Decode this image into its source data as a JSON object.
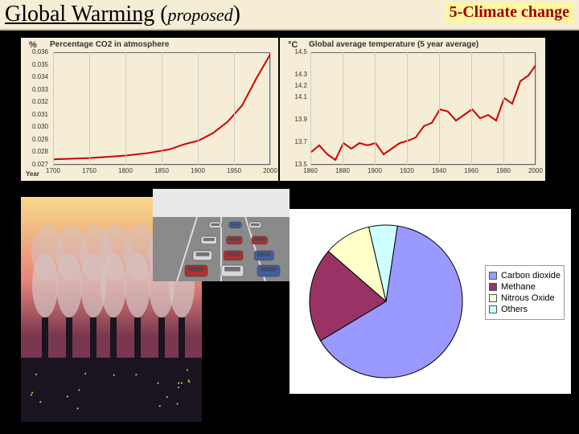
{
  "header": {
    "title_main": "Global Warming",
    "paren_open": "(",
    "paren_text": "proposed",
    "paren_close": ")",
    "tag": "5-Climate change",
    "bg_color": "#f5edd5",
    "tag_bg": "#fcf7a0",
    "tag_color": "#a00000"
  },
  "co2_chart": {
    "type": "line",
    "unit": "%",
    "title": "Percentage CO2 in atmosphere",
    "xaxis_label": "Year",
    "xlim": [
      1700,
      2000
    ],
    "xticks": [
      1700,
      1750,
      1800,
      1850,
      1900,
      1950,
      2000
    ],
    "ylim": [
      0.027,
      0.036
    ],
    "yticks": [
      0.027,
      0.028,
      0.029,
      0.03,
      0.031,
      0.032,
      0.033,
      0.034,
      0.035,
      0.036
    ],
    "ytick_labels": [
      "0.027",
      "0.028",
      "0.029",
      "0.030",
      "0.031",
      "0.032",
      "0.033",
      "0.034",
      "0.035",
      "0.036"
    ],
    "series_x": [
      1700,
      1750,
      1800,
      1830,
      1860,
      1880,
      1900,
      1920,
      1940,
      1960,
      1980,
      2000
    ],
    "series_y": [
      0.0275,
      0.0276,
      0.0278,
      0.028,
      0.0283,
      0.0287,
      0.029,
      0.0296,
      0.0305,
      0.0318,
      0.034,
      0.036
    ],
    "line_color": "#d00000",
    "line_width": 2,
    "grid_color": "#cccccc",
    "bg_color": "#f5edd5",
    "axis_color": "#666666",
    "label_fontsize": 8,
    "title_fontsize": 10
  },
  "temp_chart": {
    "type": "line",
    "unit": "°C",
    "title": "Global average temperature (5 year average)",
    "xlim": [
      1860,
      2000
    ],
    "xticks": [
      1860,
      1880,
      1900,
      1920,
      1940,
      1960,
      1980,
      2000
    ],
    "ylim": [
      13.5,
      14.5
    ],
    "yticks": [
      13.5,
      13.7,
      13.9,
      14.1,
      14.2,
      14.3,
      14.5
    ],
    "ytick_labels": [
      "13.5",
      "13.7",
      "13.9",
      "14.1",
      "14.2",
      "14.3",
      "14.5"
    ],
    "series_x": [
      1860,
      1865,
      1870,
      1875,
      1880,
      1885,
      1890,
      1895,
      1900,
      1905,
      1910,
      1915,
      1920,
      1925,
      1930,
      1935,
      1940,
      1945,
      1950,
      1955,
      1960,
      1965,
      1970,
      1975,
      1980,
      1985,
      1990,
      1995,
      2000
    ],
    "series_y": [
      13.62,
      13.68,
      13.6,
      13.55,
      13.7,
      13.65,
      13.7,
      13.68,
      13.7,
      13.6,
      13.65,
      13.7,
      13.72,
      13.75,
      13.85,
      13.88,
      14.0,
      13.98,
      13.9,
      13.95,
      14.0,
      13.92,
      13.95,
      13.9,
      14.1,
      14.05,
      14.25,
      14.3,
      14.4
    ],
    "line_color": "#d00000",
    "line_width": 2,
    "grid_color": "#cccccc",
    "bg_color": "#f5edd5",
    "axis_color": "#666666",
    "label_fontsize": 8,
    "title_fontsize": 10
  },
  "pie_chart": {
    "type": "pie",
    "slices": [
      {
        "label": "Carbon dioxide",
        "value": 64,
        "color": "#9999ff"
      },
      {
        "label": "Methane",
        "value": 20,
        "color": "#993366"
      },
      {
        "label": "Nitrous Oxide",
        "value": 10,
        "color": "#ffffcc"
      },
      {
        "label": "Others",
        "value": 6,
        "color": "#ccffff"
      }
    ],
    "bg_color": "#ffffff",
    "border_color": "#000000",
    "legend_fontsize": 11,
    "legend_border": "#999999"
  },
  "photos": {
    "smokestacks": {
      "sky_top": "#f7d98a",
      "sky_mid": "#e8857a",
      "sky_bot": "#7a3850",
      "ground": "#1a1420",
      "smoke": "#d4c4c4"
    },
    "traffic": {
      "road": "#8a8a8a",
      "sky": "#e8e8e8",
      "car1": "#b03030",
      "car2": "#d8d8d8",
      "car3": "#4060a0"
    }
  }
}
